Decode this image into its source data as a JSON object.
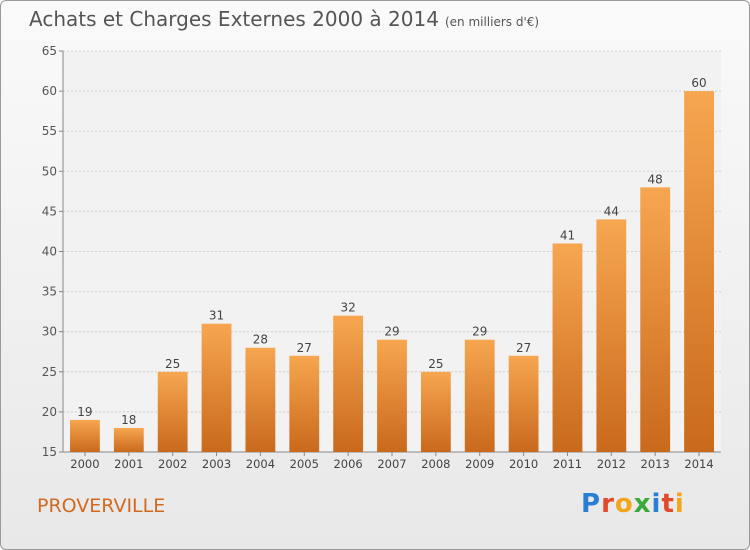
{
  "title": "Achats et Charges Externes 2000 à 2014",
  "unit": "(en milliers d'€)",
  "commune": "PROVERVILLE",
  "logo": "Proxiti",
  "colors": {
    "bar_top": "#f7a650",
    "bar_bottom": "#c9691c",
    "text": "#555555",
    "commune": "#d2691e"
  },
  "chart_data": {
    "type": "bar",
    "title": "Achats et Charges Externes 2000 à 2014",
    "ylim": [
      15,
      65
    ],
    "yticks": [
      15,
      20,
      25,
      30,
      35,
      40,
      45,
      50,
      55,
      60,
      65
    ],
    "grid": true,
    "categories": [
      "2000",
      "2001",
      "2002",
      "2003",
      "2004",
      "2005",
      "2006",
      "2007",
      "2008",
      "2009",
      "2010",
      "2011",
      "2012",
      "2013",
      "2014"
    ],
    "values": [
      19,
      18,
      25,
      31,
      28,
      27,
      32,
      29,
      25,
      29,
      27,
      41,
      44,
      48,
      60
    ]
  }
}
